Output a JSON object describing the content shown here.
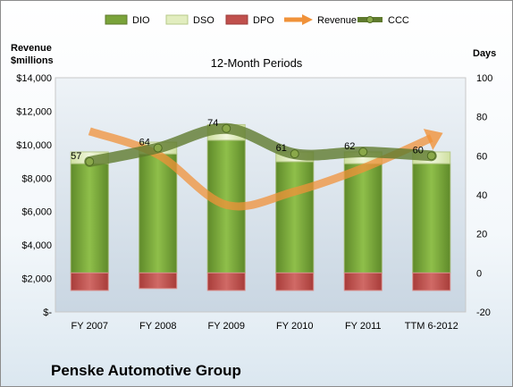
{
  "chart_data": {
    "type": "bar",
    "title": "12-Month Periods",
    "company": "Penske Automotive Group",
    "categories": [
      "FY 2007",
      "FY 2008",
      "FY 2009",
      "FY 2010",
      "FY 2011",
      "TTM 6-2012"
    ],
    "left_axis": {
      "label_line1": "Revenue",
      "label_line2": "$millions",
      "ylim": [
        0,
        14000
      ],
      "ticks": [
        "$-",
        "$2,000",
        "$4,000",
        "$6,000",
        "$8,000",
        "$10,000",
        "$12,000",
        "$14,000"
      ]
    },
    "right_axis": {
      "label": "Days",
      "ylim": [
        -20,
        100
      ],
      "ticks": [
        "-20",
        "0",
        "20",
        "40",
        "60",
        "80",
        "100"
      ]
    },
    "series": [
      {
        "name": "DIO",
        "type": "stacked-bar",
        "axis": "days",
        "color": "#7aa33a",
        "values": [
          56,
          61,
          68,
          57,
          56,
          56
        ]
      },
      {
        "name": "DSO",
        "type": "stacked-bar",
        "axis": "days",
        "color": "#e2edbf",
        "values": [
          6,
          6,
          8,
          5,
          6,
          6
        ]
      },
      {
        "name": "DPO",
        "type": "bar-negative",
        "axis": "days",
        "color": "#c0504d",
        "values": [
          -9,
          -8,
          -9,
          -9,
          -9,
          -9
        ]
      },
      {
        "name": "Revenue",
        "type": "line",
        "axis": "revenue",
        "color": "#f0923a",
        "values": [
          10800,
          9400,
          6400,
          7200,
          8600,
          10400
        ]
      },
      {
        "name": "CCC",
        "type": "line",
        "axis": "days",
        "color": "#5f7a2e",
        "values": [
          57,
          64,
          74,
          61,
          62,
          60
        ]
      }
    ],
    "data_labels": [
      "57",
      "64",
      "74",
      "61",
      "62",
      "60"
    ],
    "grid": false,
    "legend_position": "top"
  }
}
